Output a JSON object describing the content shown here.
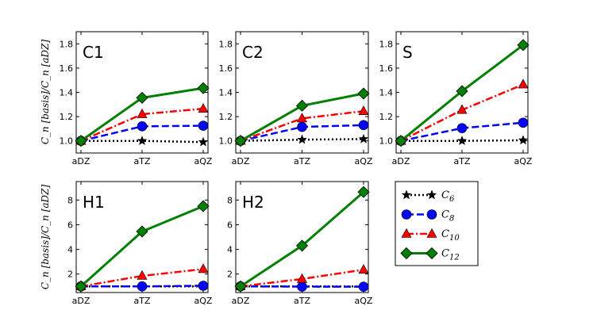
{
  "chart_data": {
    "type": "line",
    "ylabel": "C_n [basis]/C_n [aDZ]",
    "categories": [
      "aDZ",
      "aTZ",
      "aQZ"
    ],
    "series_meta": [
      {
        "key": "C6",
        "name": "C",
        "sub": "6",
        "color": "#000000",
        "marker": "star",
        "dash": "dotted"
      },
      {
        "key": "C8",
        "name": "C",
        "sub": "8",
        "color": "#0000ff",
        "marker": "circle",
        "dash": "dashed"
      },
      {
        "key": "C10",
        "name": "C",
        "sub": "10",
        "color": "#ff0000",
        "marker": "triangle",
        "dash": "dashdot"
      },
      {
        "key": "C12",
        "name": "C",
        "sub": "12",
        "color": "#008000",
        "marker": "diamond",
        "dash": "solid"
      }
    ],
    "panels": [
      {
        "label": "C1",
        "ylim": [
          0.9,
          1.9
        ],
        "yticks": [
          "1.0",
          "1.2",
          "1.4",
          "1.6",
          "1.8"
        ],
        "series": {
          "C6": [
            1.0,
            1.0,
            0.99
          ],
          "C8": [
            1.0,
            1.12,
            1.125
          ],
          "C10": [
            1.0,
            1.22,
            1.265
          ],
          "C12": [
            1.0,
            1.355,
            1.435
          ]
        }
      },
      {
        "label": "C2",
        "ylim": [
          0.9,
          1.9
        ],
        "yticks": [
          "1.0",
          "1.2",
          "1.4",
          "1.6",
          "1.8"
        ],
        "series": {
          "C6": [
            1.0,
            1.01,
            1.015
          ],
          "C8": [
            1.0,
            1.115,
            1.13
          ],
          "C10": [
            1.0,
            1.185,
            1.245
          ],
          "C12": [
            1.0,
            1.29,
            1.39
          ]
        }
      },
      {
        "label": "S",
        "ylim": [
          0.9,
          1.9
        ],
        "yticks": [
          "1.0",
          "1.2",
          "1.4",
          "1.6",
          "1.8"
        ],
        "series": {
          "C6": [
            1.0,
            1.0,
            1.005
          ],
          "C8": [
            1.0,
            1.105,
            1.15
          ],
          "C10": [
            1.0,
            1.255,
            1.465
          ],
          "C12": [
            1.0,
            1.41,
            1.79
          ]
        }
      },
      {
        "label": "H1",
        "ylim": [
          0.5,
          9.5
        ],
        "yticks": [
          "2",
          "4",
          "6",
          "8"
        ],
        "series": {
          "C6": [
            1.0,
            1.0,
            1.0
          ],
          "C8": [
            1.0,
            1.0,
            1.05
          ],
          "C10": [
            1.0,
            1.85,
            2.4
          ],
          "C12": [
            1.0,
            5.45,
            7.5
          ]
        }
      },
      {
        "label": "H2",
        "ylim": [
          0.5,
          9.5
        ],
        "yticks": [
          "2",
          "4",
          "6",
          "8"
        ],
        "series": {
          "C6": [
            1.0,
            1.0,
            1.0
          ],
          "C8": [
            1.0,
            0.98,
            0.97
          ],
          "C10": [
            1.0,
            1.6,
            2.35
          ],
          "C12": [
            1.0,
            4.3,
            8.65
          ]
        }
      }
    ]
  }
}
